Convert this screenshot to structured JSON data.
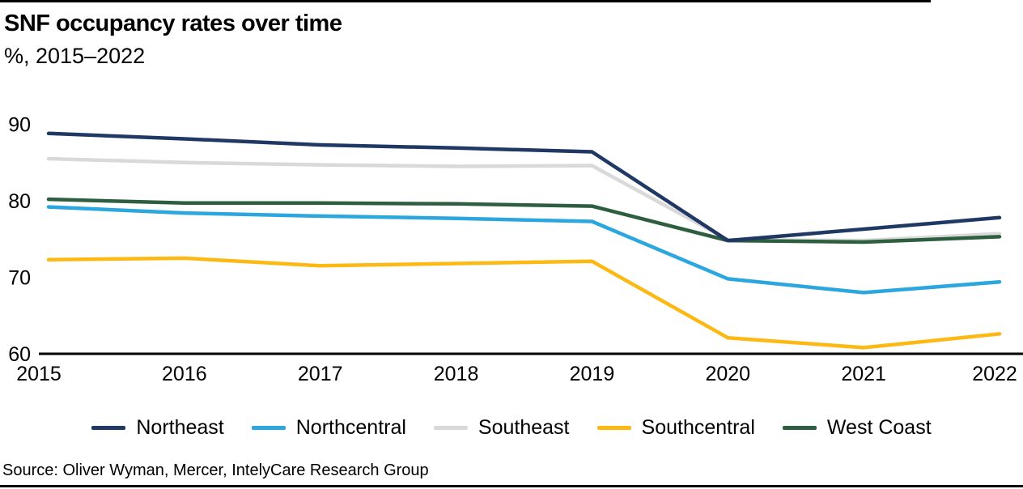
{
  "header": {
    "title": "SNF occupancy rates over time",
    "subtitle": "%, 2015–2022"
  },
  "chart_data": {
    "type": "line",
    "title": "SNF occupancy rates over time",
    "subtitle": "%, 2015–2022",
    "xlabel": "",
    "ylabel": "%",
    "x": [
      2015,
      2016,
      2017,
      2018,
      2019,
      2020,
      2021,
      2022
    ],
    "series": [
      {
        "name": "Northeast",
        "color": "#1F3864",
        "values": [
          88.8,
          88.1,
          87.3,
          86.9,
          86.4,
          74.8,
          76.3,
          77.8
        ]
      },
      {
        "name": "Northcentral",
        "color": "#2BA6DE",
        "values": [
          79.2,
          78.4,
          78.0,
          77.7,
          77.3,
          69.8,
          68.0,
          69.4
        ]
      },
      {
        "name": "Southeast",
        "color": "#D9D9D9",
        "values": [
          85.5,
          85.0,
          84.7,
          84.5,
          84.6,
          74.9,
          74.8,
          75.7
        ]
      },
      {
        "name": "Southcentral",
        "color": "#FDB913",
        "values": [
          72.3,
          72.5,
          71.5,
          71.8,
          72.1,
          62.1,
          60.8,
          62.6
        ]
      },
      {
        "name": "West Coast",
        "color": "#2C5E3F",
        "values": [
          80.2,
          79.7,
          79.7,
          79.6,
          79.3,
          74.8,
          74.6,
          75.3
        ]
      }
    ],
    "ylim": [
      60,
      91.5
    ],
    "yticks": [
      60,
      70,
      80,
      90
    ],
    "grid": false,
    "legend_position": "bottom",
    "axis_color": "#000000"
  },
  "source": {
    "text": "Source: Oliver Wyman, Mercer, IntelyCare Research Group"
  }
}
